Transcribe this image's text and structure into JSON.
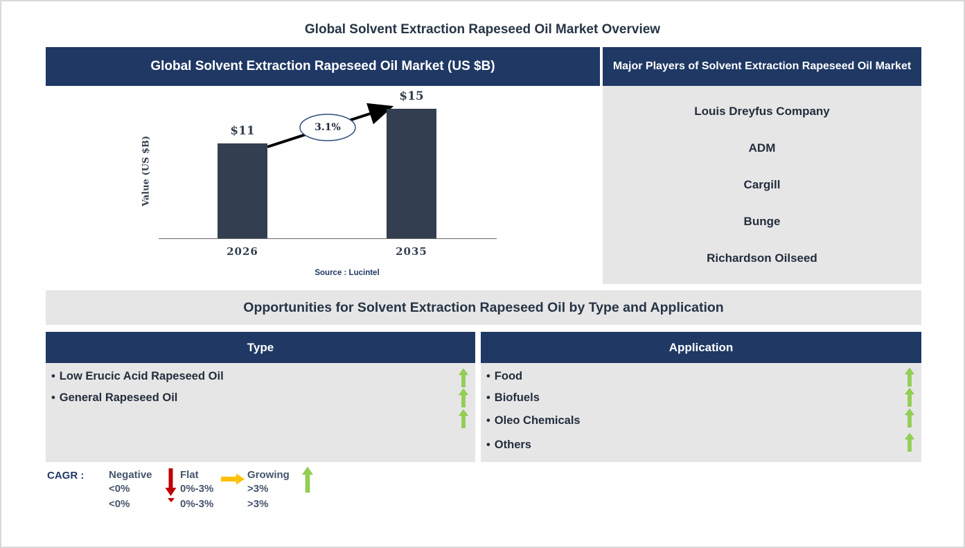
{
  "page": {
    "title": "Global Solvent Extraction Rapeseed Oil Market Overview"
  },
  "market_chart": {
    "header": "Global Solvent Extraction Rapeseed Oil Market (US $B)",
    "source": "Source : Lucintel"
  },
  "chart_data": {
    "type": "bar",
    "title": "Global Solvent Extraction Rapeseed Oil Market (US $B)",
    "categories": [
      "2026",
      "2035"
    ],
    "values": [
      11,
      15
    ],
    "value_labels": [
      "$11",
      "$15"
    ],
    "xlabel": "",
    "ylabel": "Value (US $B)",
    "ylim": [
      0,
      17
    ],
    "grid": false,
    "legend_position": "none",
    "annotation": "3.1%",
    "annotation_meaning": "CAGR between 2026 and 2035",
    "source": "Source : Lucintel",
    "bar_color": "#333F50"
  },
  "major_players": {
    "header": "Major Players of Solvent Extraction Rapeseed Oil Market",
    "companies": [
      "Louis Dreyfus Company",
      "ADM",
      "Cargill",
      "Bunge",
      "Richardson Oilseed"
    ]
  },
  "opportunities": {
    "title": "Opportunities for Solvent Extraction Rapeseed Oil by Type and Application",
    "type_table": {
      "header": "Type",
      "items": [
        "Low Erucic Acid Rapeseed Oil",
        "General Rapeseed Oil"
      ],
      "bullet": "•",
      "trend": "growing"
    },
    "application_table": {
      "header": "Application",
      "items": [
        "Food",
        "Biofuels",
        "Oleo Chemicals",
        "Others"
      ],
      "bullet": "•",
      "trend": "growing"
    }
  },
  "legend": {
    "label": "CAGR :",
    "entries": [
      {
        "name": "Negative",
        "range": "<0%",
        "arrow": "down-arrow",
        "color": "#C00000"
      },
      {
        "name": "Flat",
        "range": "0%-3%",
        "arrow": "right-arrow",
        "color": "#FFC000"
      },
      {
        "name": "Growing",
        "range": ">3%",
        "arrow": "up-arrow",
        "color": "#92D050"
      }
    ],
    "clipped_row": [
      "<0%",
      "0%-3%",
      ">3%"
    ]
  },
  "colors": {
    "header_navy": "#1F3864",
    "bar_fill": "#333F50",
    "panel_gray": "#E7E6E6",
    "title_text": "#263445",
    "growing_green": "#92D050",
    "negative_red": "#C00000",
    "flat_yellow": "#FFC000"
  }
}
